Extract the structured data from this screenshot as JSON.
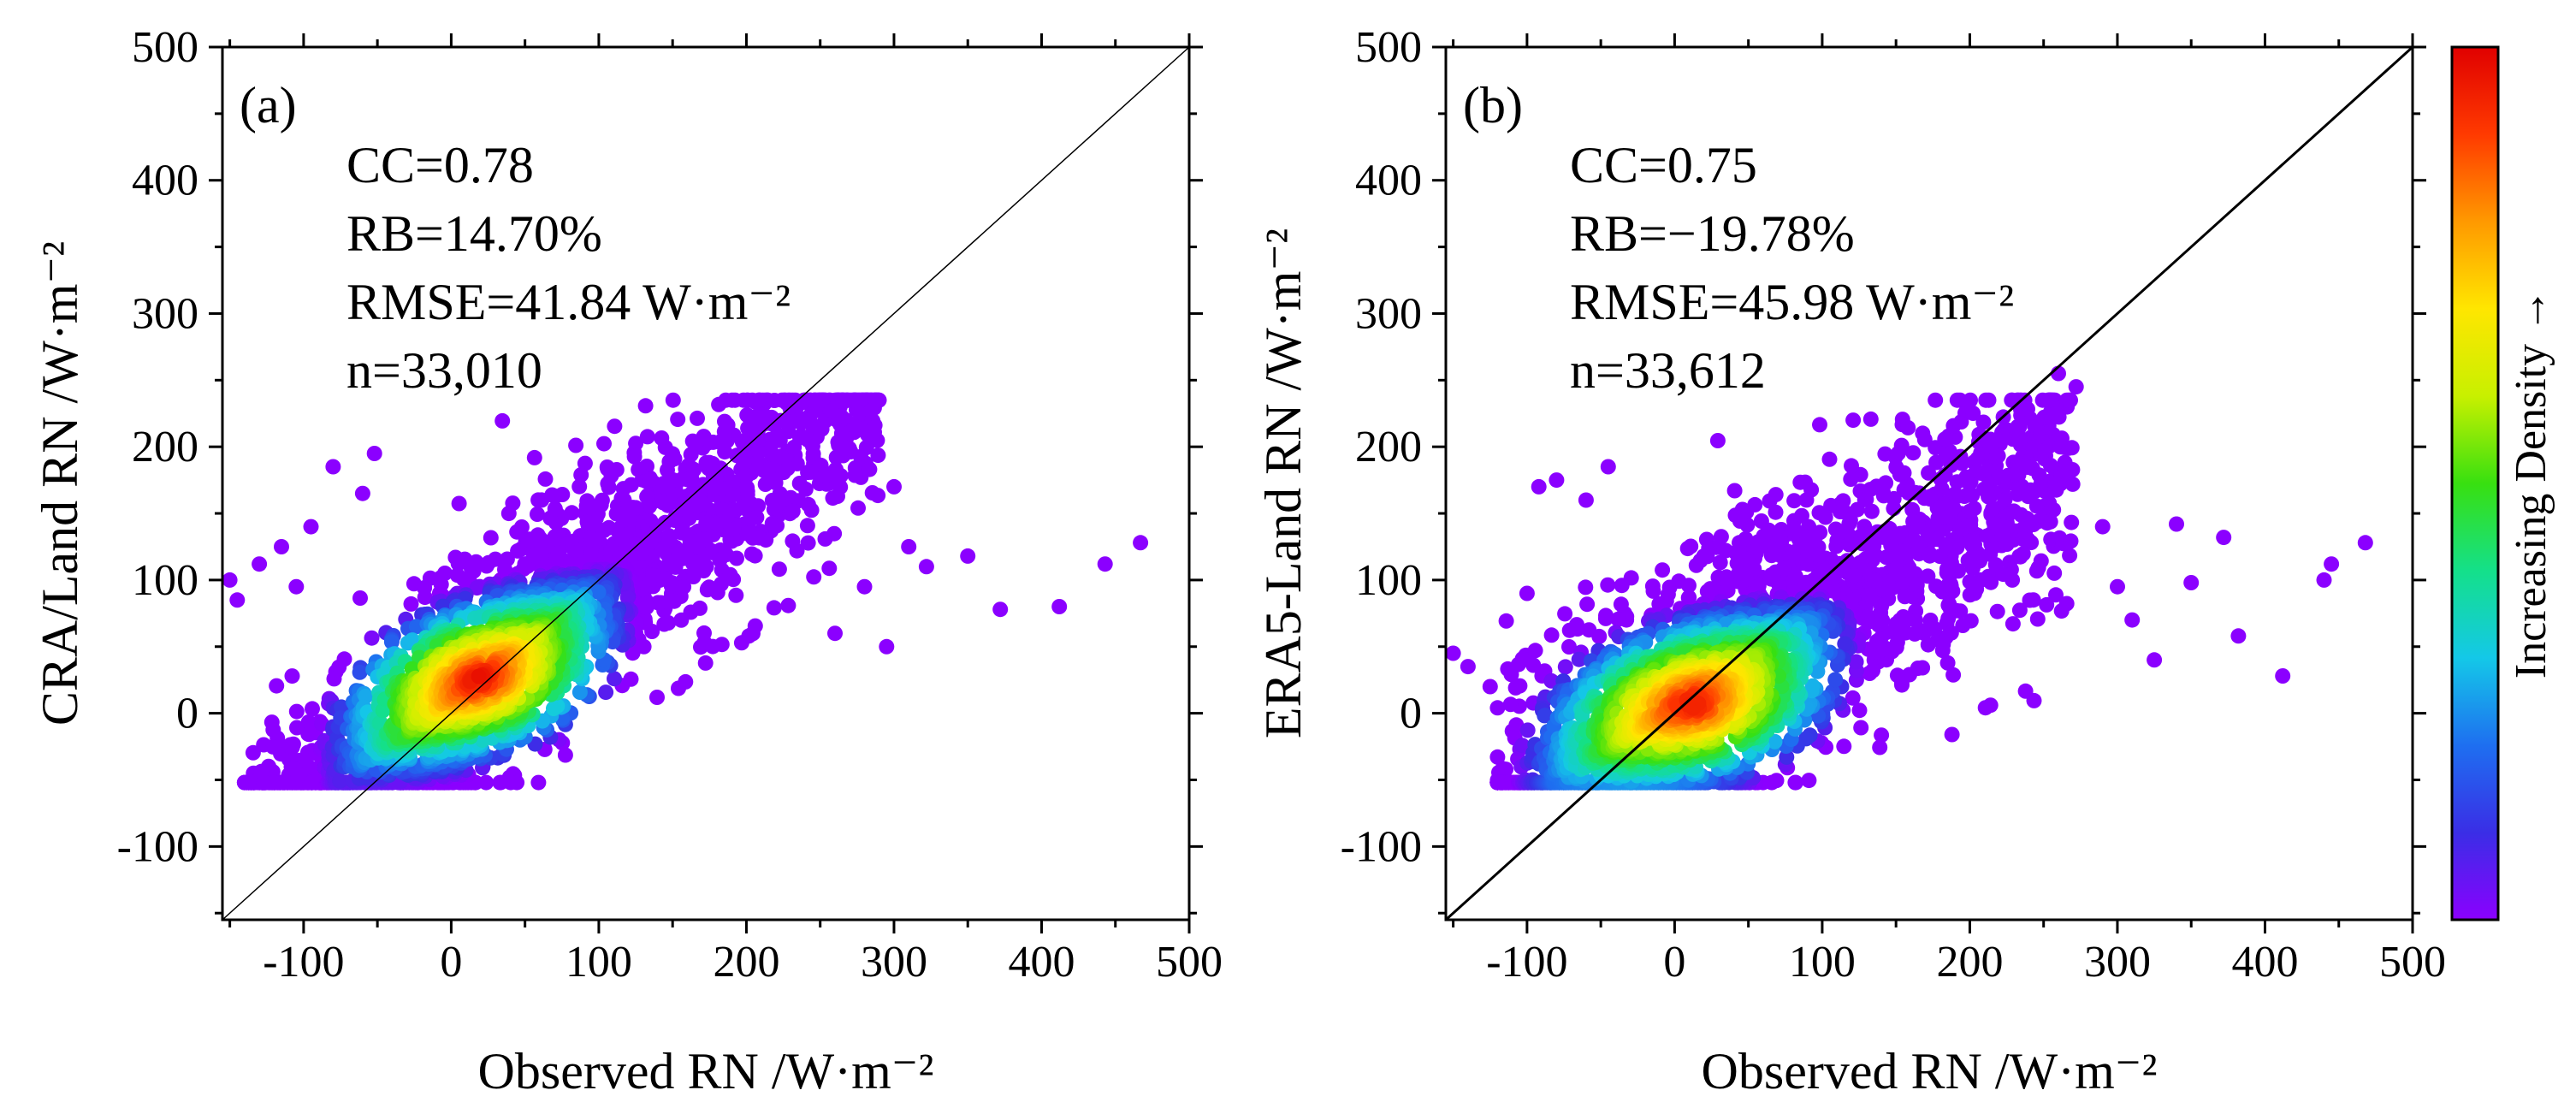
{
  "figure": {
    "colorbar": {
      "label": "Increasing Density →",
      "colors": [
        "#8B00FF",
        "#3A2EE6",
        "#1E6FF0",
        "#14C8E8",
        "#14E08A",
        "#38E010",
        "#C8F000",
        "#FFE600",
        "#FF9900",
        "#FF3A00",
        "#E00000"
      ]
    }
  },
  "chart_data": [
    {
      "type": "scatter",
      "id": "a",
      "panel_label": "(a)",
      "xlabel": "Observed RN /W·m⁻²",
      "ylabel": "CRA/Land RN /W·m⁻²",
      "xlim": [
        -155,
        500
      ],
      "ylim": [
        -155,
        500
      ],
      "xticks": [
        -100,
        0,
        100,
        200,
        300,
        400,
        500
      ],
      "yticks": [
        -100,
        0,
        100,
        200,
        300,
        400,
        500
      ],
      "xtick_labels": [
        "-100",
        "0",
        "100",
        "200",
        "300",
        "400",
        "500"
      ],
      "ytick_labels": [
        "-100",
        "0",
        "100",
        "200",
        "300",
        "400",
        "500"
      ],
      "reference_line": "1:1",
      "stats": [
        "CC=0.78",
        "RB=14.70%",
        "RMSE=41.84 W·m⁻²",
        "n=33,010"
      ],
      "density_model": {
        "slope": 0.82,
        "intercept": 12,
        "density_peak": [
          20,
          25
        ],
        "x_range": [
          -140,
          290
        ],
        "spread": 42
      },
      "outliers": [
        [
          -150,
          100
        ],
        [
          -145,
          85
        ],
        [
          -130,
          112
        ],
        [
          -115,
          125
        ],
        [
          -105,
          95
        ],
        [
          -95,
          140
        ],
        [
          -80,
          185
        ],
        [
          -60,
          165
        ],
        [
          -52,
          195
        ],
        [
          245,
          215
        ],
        [
          260,
          60
        ],
        [
          280,
          95
        ],
        [
          295,
          50
        ],
        [
          300,
          170
        ],
        [
          310,
          125
        ],
        [
          322,
          110
        ],
        [
          350,
          118
        ],
        [
          372,
          78
        ],
        [
          412,
          80
        ],
        [
          443,
          112
        ],
        [
          467,
          128
        ]
      ]
    },
    {
      "type": "scatter",
      "id": "b",
      "panel_label": "(b)",
      "xlabel": "Observed RN /W·m⁻²",
      "ylabel": "ERA5-Land RN /W·m⁻²",
      "xlim": [
        -155,
        500
      ],
      "ylim": [
        -155,
        500
      ],
      "xticks": [
        -100,
        0,
        100,
        200,
        300,
        400,
        500
      ],
      "yticks": [
        -100,
        0,
        100,
        200,
        300,
        400,
        500
      ],
      "xtick_labels": [
        "-100",
        "0",
        "100",
        "200",
        "300",
        "400",
        "500"
      ],
      "ytick_labels": [
        "-100",
        "0",
        "100",
        "200",
        "300",
        "400",
        "500"
      ],
      "reference_line": "1:1",
      "stats": [
        "CC=0.75",
        "RB=−19.78%",
        "RMSE=45.98 W·m⁻²",
        "n=33,612"
      ],
      "density_model": {
        "slope": 0.7,
        "intercept": 5,
        "density_peak": [
          15,
          5
        ],
        "x_range": [
          -120,
          270
        ],
        "spread": 48
      },
      "outliers": [
        [
          -150,
          45
        ],
        [
          -140,
          35
        ],
        [
          -125,
          20
        ],
        [
          -100,
          90
        ],
        [
          -92,
          170
        ],
        [
          -80,
          175
        ],
        [
          -60,
          160
        ],
        [
          -45,
          185
        ],
        [
          260,
          255
        ],
        [
          272,
          245
        ],
        [
          290,
          140
        ],
        [
          300,
          95
        ],
        [
          310,
          70
        ],
        [
          325,
          40
        ],
        [
          340,
          142
        ],
        [
          350,
          98
        ],
        [
          372,
          132
        ],
        [
          382,
          58
        ],
        [
          412,
          28
        ],
        [
          440,
          100
        ],
        [
          445,
          112
        ],
        [
          468,
          128
        ]
      ]
    }
  ]
}
